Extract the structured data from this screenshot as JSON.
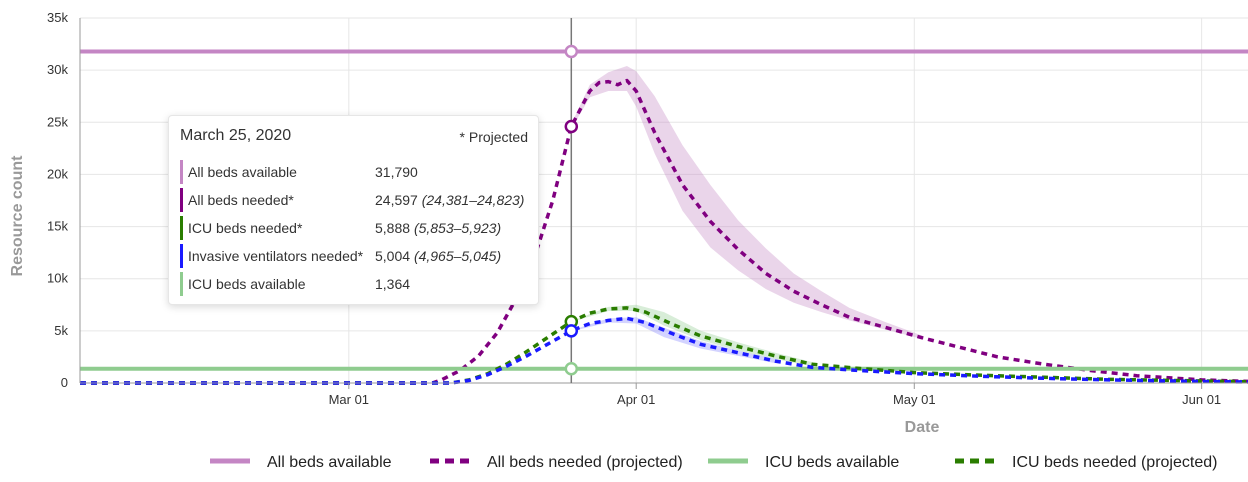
{
  "chart_data": {
    "type": "line",
    "title": "",
    "xlabel": "Date",
    "ylabel": "Resource count",
    "x_range": [
      "2020-02-01",
      "2020-06-06"
    ],
    "x_ticks": [
      {
        "date": "2020-03-01",
        "label": "Mar 01"
      },
      {
        "date": "2020-04-01",
        "label": "Apr 01"
      },
      {
        "date": "2020-05-01",
        "label": "May 01"
      },
      {
        "date": "2020-06-01",
        "label": "Jun 01"
      }
    ],
    "ylim": [
      0,
      35000
    ],
    "y_ticks": [
      {
        "value": 0,
        "label": "0"
      },
      {
        "value": 5000,
        "label": "5k"
      },
      {
        "value": 10000,
        "label": "10k"
      },
      {
        "value": 15000,
        "label": "15k"
      },
      {
        "value": 20000,
        "label": "20k"
      },
      {
        "value": 25000,
        "label": "25k"
      },
      {
        "value": 30000,
        "label": "30k"
      },
      {
        "value": 35000,
        "label": "35k"
      }
    ],
    "grid": true,
    "legend_position": "bottom",
    "series": [
      {
        "name": "All beds available",
        "style": "solid",
        "color": "#c486c4",
        "points": [
          [
            "2020-02-01",
            31790
          ],
          [
            "2020-06-06",
            31790
          ]
        ]
      },
      {
        "name": "All beds needed (projected)",
        "style": "dashed",
        "color": "#800080",
        "band_color": "#c486c4",
        "points": [
          [
            "2020-02-01",
            0
          ],
          [
            "2020-03-10",
            0
          ],
          [
            "2020-03-11",
            300
          ],
          [
            "2020-03-13",
            1200
          ],
          [
            "2020-03-15",
            2600
          ],
          [
            "2020-03-17",
            4800
          ],
          [
            "2020-03-19",
            8000
          ],
          [
            "2020-03-21",
            12000
          ],
          [
            "2020-03-23",
            17500
          ],
          [
            "2020-03-25",
            24597
          ],
          [
            "2020-03-27",
            28000
          ],
          [
            "2020-03-28",
            28800
          ],
          [
            "2020-03-29",
            28900
          ],
          [
            "2020-03-30",
            28600
          ],
          [
            "2020-03-31",
            29000
          ],
          [
            "2020-04-01",
            28000
          ],
          [
            "2020-04-03",
            24000
          ],
          [
            "2020-04-06",
            19000
          ],
          [
            "2020-04-09",
            15500
          ],
          [
            "2020-04-12",
            12800
          ],
          [
            "2020-04-15",
            10500
          ],
          [
            "2020-04-18",
            8800
          ],
          [
            "2020-04-21",
            7500
          ],
          [
            "2020-04-24",
            6300
          ],
          [
            "2020-04-28",
            5300
          ],
          [
            "2020-05-02",
            4300
          ],
          [
            "2020-05-06",
            3400
          ],
          [
            "2020-05-10",
            2500
          ],
          [
            "2020-05-15",
            1800
          ],
          [
            "2020-05-20",
            1200
          ],
          [
            "2020-05-25",
            700
          ],
          [
            "2020-06-01",
            300
          ],
          [
            "2020-06-06",
            150
          ]
        ],
        "band": [
          [
            "2020-03-25",
            24381,
            24823
          ],
          [
            "2020-03-27",
            27400,
            28600
          ],
          [
            "2020-03-29",
            28000,
            29800
          ],
          [
            "2020-03-31",
            28000,
            30400
          ],
          [
            "2020-04-01",
            26500,
            29900
          ],
          [
            "2020-04-03",
            22000,
            27500
          ],
          [
            "2020-04-06",
            16500,
            22800
          ],
          [
            "2020-04-09",
            13000,
            19000
          ],
          [
            "2020-04-12",
            10800,
            15600
          ],
          [
            "2020-04-15",
            9000,
            12900
          ],
          [
            "2020-04-18",
            7700,
            10500
          ],
          [
            "2020-04-21",
            6800,
            8800
          ],
          [
            "2020-04-24",
            6000,
            7200
          ],
          [
            "2020-04-28",
            5100,
            5800
          ],
          [
            "2020-05-02",
            4200,
            4500
          ]
        ]
      },
      {
        "name": "ICU beds available",
        "style": "solid",
        "color": "#8fcc8f",
        "points": [
          [
            "2020-02-01",
            1364
          ],
          [
            "2020-06-06",
            1364
          ]
        ]
      },
      {
        "name": "ICU beds needed (projected)",
        "style": "dashed",
        "color": "#2a7d00",
        "band_color": "#8fcc8f",
        "points": [
          [
            "2020-02-01",
            0
          ],
          [
            "2020-03-12",
            0
          ],
          [
            "2020-03-14",
            300
          ],
          [
            "2020-03-16",
            900
          ],
          [
            "2020-03-18",
            1800
          ],
          [
            "2020-03-20",
            2900
          ],
          [
            "2020-03-22",
            4100
          ],
          [
            "2020-03-25",
            5888
          ],
          [
            "2020-03-27",
            6700
          ],
          [
            "2020-03-29",
            7100
          ],
          [
            "2020-03-31",
            7200
          ],
          [
            "2020-04-02",
            6800
          ],
          [
            "2020-04-05",
            5600
          ],
          [
            "2020-04-08",
            4500
          ],
          [
            "2020-04-12",
            3500
          ],
          [
            "2020-04-16",
            2600
          ],
          [
            "2020-04-20",
            1800
          ],
          [
            "2020-04-25",
            1400
          ],
          [
            "2020-05-01",
            1000
          ],
          [
            "2020-05-08",
            750
          ],
          [
            "2020-05-15",
            550
          ],
          [
            "2020-05-22",
            350
          ],
          [
            "2020-06-01",
            200
          ],
          [
            "2020-06-06",
            120
          ]
        ],
        "band": [
          [
            "2020-03-25",
            5853,
            5923
          ],
          [
            "2020-03-29",
            6900,
            7300
          ],
          [
            "2020-04-01",
            6900,
            7500
          ],
          [
            "2020-04-04",
            5500,
            6800
          ],
          [
            "2020-04-08",
            4100,
            5000
          ],
          [
            "2020-04-12",
            3100,
            3900
          ],
          [
            "2020-04-16",
            2300,
            2900
          ],
          [
            "2020-04-20",
            1600,
            2000
          ]
        ]
      },
      {
        "name": "Invasive ventilators needed (projected)",
        "style": "dashed",
        "color": "#1a1aff",
        "band_color": "#8080ff",
        "points": [
          [
            "2020-02-01",
            0
          ],
          [
            "2020-03-12",
            0
          ],
          [
            "2020-03-14",
            250
          ],
          [
            "2020-03-16",
            800
          ],
          [
            "2020-03-18",
            1600
          ],
          [
            "2020-03-20",
            2500
          ],
          [
            "2020-03-22",
            3500
          ],
          [
            "2020-03-25",
            5004
          ],
          [
            "2020-03-27",
            5700
          ],
          [
            "2020-03-29",
            6000
          ],
          [
            "2020-03-31",
            6200
          ],
          [
            "2020-04-02",
            5800
          ],
          [
            "2020-04-05",
            4700
          ],
          [
            "2020-04-08",
            3700
          ],
          [
            "2020-04-12",
            2900
          ],
          [
            "2020-04-16",
            2100
          ],
          [
            "2020-04-20",
            1500
          ],
          [
            "2020-04-25",
            1200
          ],
          [
            "2020-05-01",
            900
          ],
          [
            "2020-05-08",
            650
          ],
          [
            "2020-05-15",
            450
          ],
          [
            "2020-05-22",
            300
          ],
          [
            "2020-06-01",
            150
          ],
          [
            "2020-06-06",
            100
          ]
        ],
        "band": [
          [
            "2020-03-25",
            4965,
            5045
          ],
          [
            "2020-03-29",
            5800,
            6200
          ],
          [
            "2020-04-01",
            5700,
            6300
          ],
          [
            "2020-04-04",
            4400,
            5300
          ],
          [
            "2020-04-08",
            3300,
            4000
          ],
          [
            "2020-04-12",
            2600,
            3100
          ],
          [
            "2020-04-16",
            1900,
            2300
          ]
        ]
      }
    ],
    "hover_date": "2020-03-25",
    "hover_points": [
      {
        "value": 31790,
        "color": "#c486c4"
      },
      {
        "value": 24597,
        "color": "#800080"
      },
      {
        "value": 5888,
        "color": "#2a7d00"
      },
      {
        "value": 5004,
        "color": "#1a1aff"
      },
      {
        "value": 1364,
        "color": "#8fcc8f"
      }
    ],
    "legend": [
      {
        "label": "All beds available",
        "style": "solid",
        "color": "#c486c4"
      },
      {
        "label": "All beds needed (projected)",
        "style": "dashed",
        "color": "#800080"
      },
      {
        "label": "ICU beds available",
        "style": "solid",
        "color": "#8fcc8f"
      },
      {
        "label": "ICU beds needed (projected)",
        "style": "dashed",
        "color": "#2a7d00"
      }
    ]
  },
  "tooltip": {
    "date": "March 25, 2020",
    "note": "* Projected",
    "rows": [
      {
        "label": "All beds available",
        "value": "31,790",
        "ci": "",
        "color": "#c486c4"
      },
      {
        "label": "All beds needed*",
        "value": "24,597",
        "ci": "(24,381–24,823)",
        "color": "#800080"
      },
      {
        "label": "ICU beds needed*",
        "value": "5,888",
        "ci": "(5,853–5,923)",
        "color": "#2a7d00"
      },
      {
        "label": "Invasive ventilators needed*",
        "value": "5,004",
        "ci": "(4,965–5,045)",
        "color": "#1a1aff"
      },
      {
        "label": "ICU beds available",
        "value": "1,364",
        "ci": "",
        "color": "#8fcc8f"
      }
    ]
  }
}
